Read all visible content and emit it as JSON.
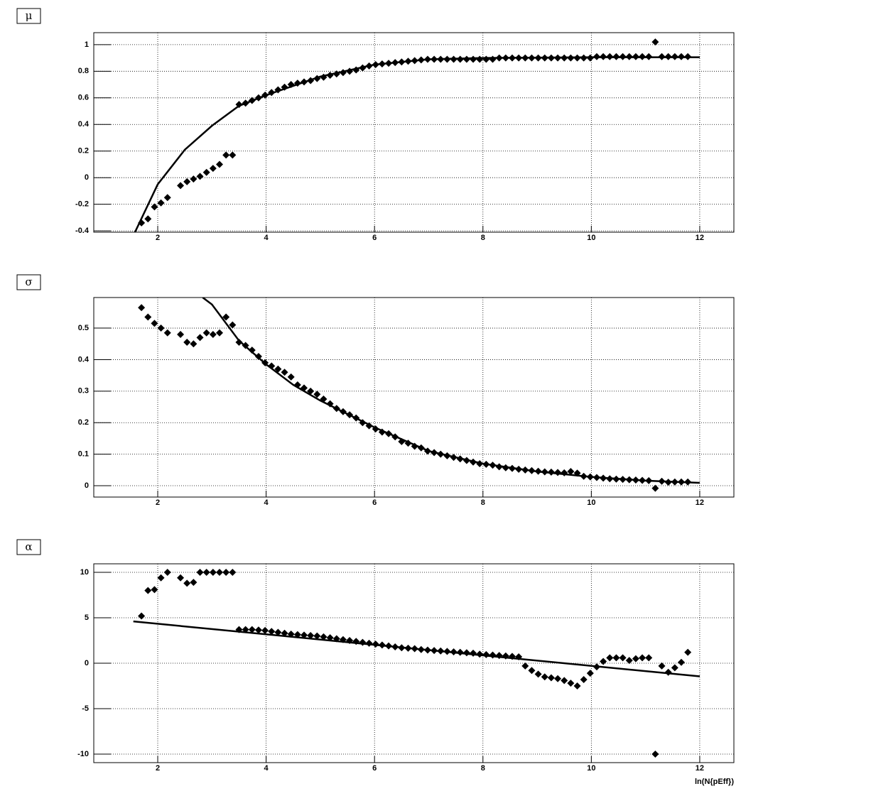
{
  "chart_data": [
    {
      "type": "scatter",
      "label": "μ",
      "color": "#000000",
      "grid": true,
      "xlim": [
        0.82,
        12.63
      ],
      "ylim": [
        -0.41,
        1.09
      ],
      "xticks": [
        2,
        4,
        6,
        8,
        10,
        12
      ],
      "yticks": [
        -0.4,
        -0.2,
        0,
        0.2,
        0.4,
        0.6,
        0.8,
        1
      ],
      "x": [
        1.7,
        1.82,
        1.94,
        2.06,
        2.18,
        2.3,
        2.42,
        2.54,
        2.66,
        2.78,
        2.9,
        3.02,
        3.14,
        3.26,
        3.38,
        3.5,
        3.62,
        3.74,
        3.86,
        3.98,
        4.1,
        4.22,
        4.34,
        4.46,
        4.58,
        4.7,
        4.82,
        4.94,
        5.06,
        5.18,
        5.3,
        5.42,
        5.54,
        5.66,
        5.78,
        5.9,
        6.02,
        6.14,
        6.26,
        6.38,
        6.5,
        6.62,
        6.74,
        6.86,
        6.98,
        7.1,
        7.22,
        7.34,
        7.46,
        7.58,
        7.7,
        7.82,
        7.94,
        8.06,
        8.18,
        8.3,
        8.42,
        8.54,
        8.66,
        8.78,
        8.9,
        9.02,
        9.14,
        9.26,
        9.38,
        9.5,
        9.62,
        9.74,
        9.86,
        9.98,
        10.1,
        10.22,
        10.34,
        10.46,
        10.58,
        10.7,
        10.82,
        10.94,
        11.06,
        11.18,
        11.3,
        11.42,
        11.54,
        11.66,
        11.78
      ],
      "values": [
        -0.34,
        -0.31,
        -0.22,
        -0.19,
        -0.15,
        null,
        -0.06,
        -0.03,
        -0.01,
        0.01,
        0.04,
        0.07,
        0.1,
        0.17,
        0.17,
        0.55,
        0.56,
        0.58,
        0.6,
        0.62,
        0.64,
        0.66,
        0.68,
        0.7,
        0.71,
        0.72,
        0.73,
        0.745,
        0.755,
        0.77,
        0.78,
        0.79,
        0.8,
        0.81,
        0.825,
        0.84,
        0.85,
        0.855,
        0.86,
        0.865,
        0.87,
        0.875,
        0.88,
        0.885,
        0.89,
        0.89,
        0.89,
        0.89,
        0.89,
        0.89,
        0.89,
        0.89,
        0.89,
        0.89,
        0.89,
        0.9,
        0.9,
        0.9,
        0.9,
        0.9,
        0.9,
        0.9,
        0.9,
        0.9,
        0.9,
        0.9,
        0.9,
        0.9,
        0.9,
        0.9,
        0.91,
        0.91,
        0.91,
        0.91,
        0.91,
        0.91,
        0.91,
        0.91,
        0.91,
        1.02,
        0.91,
        0.91,
        0.91,
        0.91,
        0.91
      ],
      "fit": {
        "x": [
          1.58,
          2,
          2.5,
          3,
          3.5,
          4,
          5,
          6,
          7,
          8,
          10,
          12
        ],
        "values": [
          -0.41,
          -0.05,
          0.21,
          0.39,
          0.54,
          0.62,
          0.76,
          0.85,
          0.89,
          0.9,
          0.905,
          0.905
        ]
      }
    },
    {
      "type": "scatter",
      "label": "σ",
      "color": "#000000",
      "grid": true,
      "xlim": [
        0.82,
        12.63
      ],
      "ylim": [
        -0.036,
        0.597
      ],
      "xticks": [
        2,
        4,
        6,
        8,
        10,
        12
      ],
      "yticks": [
        0,
        0.1,
        0.2,
        0.3,
        0.4,
        0.5
      ],
      "x": [
        1.7,
        1.82,
        1.94,
        2.06,
        2.18,
        2.3,
        2.42,
        2.54,
        2.66,
        2.78,
        2.9,
        3.02,
        3.14,
        3.26,
        3.38,
        3.5,
        3.62,
        3.74,
        3.86,
        3.98,
        4.1,
        4.22,
        4.34,
        4.46,
        4.58,
        4.7,
        4.82,
        4.94,
        5.06,
        5.18,
        5.3,
        5.42,
        5.54,
        5.66,
        5.78,
        5.9,
        6.02,
        6.14,
        6.26,
        6.38,
        6.5,
        6.62,
        6.74,
        6.86,
        6.98,
        7.1,
        7.22,
        7.34,
        7.46,
        7.58,
        7.7,
        7.82,
        7.94,
        8.06,
        8.18,
        8.3,
        8.42,
        8.54,
        8.66,
        8.78,
        8.9,
        9.02,
        9.14,
        9.26,
        9.38,
        9.5,
        9.62,
        9.74,
        9.86,
        9.98,
        10.1,
        10.22,
        10.34,
        10.46,
        10.58,
        10.7,
        10.82,
        10.94,
        11.06,
        11.18,
        11.3,
        11.42,
        11.54,
        11.66,
        11.78
      ],
      "values": [
        0.565,
        0.535,
        0.515,
        0.5,
        0.485,
        null,
        0.48,
        0.455,
        0.45,
        0.47,
        0.485,
        0.48,
        0.485,
        0.535,
        0.51,
        0.455,
        0.445,
        0.43,
        0.41,
        0.39,
        0.38,
        0.37,
        0.36,
        0.345,
        0.32,
        0.31,
        0.3,
        0.29,
        0.275,
        0.26,
        0.245,
        0.235,
        0.225,
        0.215,
        0.2,
        0.19,
        0.18,
        0.17,
        0.165,
        0.155,
        0.14,
        0.135,
        0.125,
        0.12,
        0.11,
        0.105,
        0.1,
        0.095,
        0.09,
        0.085,
        0.08,
        0.075,
        0.07,
        0.068,
        0.065,
        0.06,
        0.057,
        0.055,
        0.052,
        0.05,
        0.048,
        0.046,
        0.044,
        0.043,
        0.042,
        0.041,
        0.045,
        0.04,
        0.03,
        0.028,
        0.026,
        0.024,
        0.022,
        0.021,
        0.02,
        0.019,
        0.018,
        0.017,
        0.016,
        -0.008,
        0.014,
        0.011,
        0.012,
        0.012,
        0.012
      ],
      "fit": {
        "x": [
          2.83,
          3,
          3.5,
          4,
          4.5,
          5,
          6,
          7,
          8,
          9,
          10,
          11,
          12
        ],
        "values": [
          0.597,
          0.575,
          0.46,
          0.385,
          0.32,
          0.27,
          0.185,
          0.11,
          0.07,
          0.045,
          0.028,
          0.016,
          0.009
        ]
      }
    },
    {
      "type": "scatter",
      "label": "α",
      "color": "#000000",
      "grid": true,
      "xlabel": "ln(N{pEff})",
      "xlim": [
        0.82,
        12.63
      ],
      "ylim": [
        -10.94,
        10.94
      ],
      "xticks": [
        2,
        4,
        6,
        8,
        10,
        12
      ],
      "yticks": [
        -10,
        -5,
        0,
        5,
        10
      ],
      "x": [
        1.7,
        1.82,
        1.94,
        2.06,
        2.18,
        2.3,
        2.42,
        2.54,
        2.66,
        2.78,
        2.9,
        3.02,
        3.14,
        3.26,
        3.38,
        3.5,
        3.62,
        3.74,
        3.86,
        3.98,
        4.1,
        4.22,
        4.34,
        4.46,
        4.58,
        4.7,
        4.82,
        4.94,
        5.06,
        5.18,
        5.3,
        5.42,
        5.54,
        5.66,
        5.78,
        5.9,
        6.02,
        6.14,
        6.26,
        6.38,
        6.5,
        6.62,
        6.74,
        6.86,
        6.98,
        7.1,
        7.22,
        7.34,
        7.46,
        7.58,
        7.7,
        7.82,
        7.94,
        8.06,
        8.18,
        8.3,
        8.42,
        8.54,
        8.66,
        8.78,
        8.9,
        9.02,
        9.14,
        9.26,
        9.38,
        9.5,
        9.62,
        9.74,
        9.86,
        9.98,
        10.1,
        10.22,
        10.34,
        10.46,
        10.58,
        10.7,
        10.82,
        10.94,
        11.06,
        11.18,
        11.3,
        11.42,
        11.54,
        11.66,
        11.78
      ],
      "values": [
        5.2,
        8,
        8.1,
        9.4,
        10,
        null,
        9.4,
        8.8,
        8.9,
        10,
        10,
        10,
        10,
        10,
        10,
        3.7,
        3.7,
        3.7,
        3.65,
        3.6,
        3.5,
        3.4,
        3.3,
        3.2,
        3.15,
        3.1,
        3.05,
        3,
        2.9,
        2.8,
        2.7,
        2.6,
        2.5,
        2.4,
        2.3,
        2.2,
        2.1,
        2,
        1.9,
        1.8,
        1.7,
        1.65,
        1.6,
        1.5,
        1.45,
        1.4,
        1.35,
        1.3,
        1.25,
        1.2,
        1.15,
        1.1,
        1,
        0.95,
        0.9,
        0.85,
        0.8,
        0.75,
        0.7,
        -0.3,
        -0.8,
        -1.2,
        -1.5,
        -1.6,
        -1.7,
        -1.9,
        -2.2,
        -2.5,
        -1.8,
        -1.1,
        -0.4,
        0.2,
        0.6,
        0.6,
        0.6,
        0.3,
        0.5,
        0.6,
        0.6,
        -10,
        -0.3,
        -1,
        -0.5,
        0.1,
        1.2
      ],
      "fit": {
        "x": [
          1.55,
          12
        ],
        "values": [
          4.6,
          -1.45
        ]
      }
    }
  ]
}
